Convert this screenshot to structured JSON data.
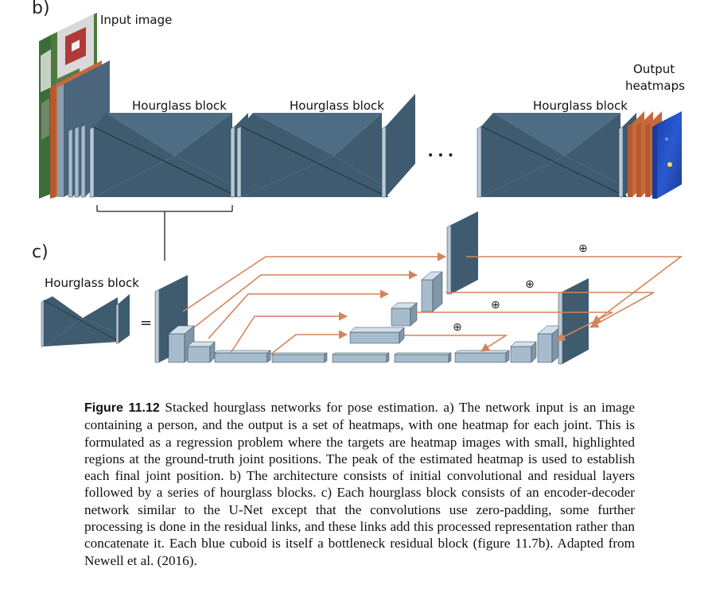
{
  "figure": {
    "panel_b_label": "b)",
    "panel_c_label": "c)",
    "input_image_label": "Input image",
    "output_heatmaps_label_line1": "Output",
    "output_heatmaps_label_line2": "heatmaps",
    "hourglass_block_labels": [
      "Hourglass block",
      "Hourglass block",
      "Hourglass block"
    ],
    "hourglass_block_label_c": "Hourglass block",
    "ellipsis": "• • •",
    "equals_sign": "=",
    "plus_symbol": "⊕"
  },
  "caption": {
    "figure_number": "Figure 11.12",
    "text": "Stacked hourglass networks for pose estimation. a) The network input is an image containing a person, and the output is a set of heatmaps, with one heatmap for each joint. This is formulated as a regression problem where the targets are heatmap images with small, highlighted regions at the ground-truth joint positions. The peak of the estimated heatmap is used to establish each final joint position. b) The architecture consists of initial convolutional and residual layers followed by a series of hourglass blocks. c) Each hourglass block consists of an encoder-decoder network similar to the U-Net except that the convolutions use zero-padding, some further processing is done in the residual links, and these links add this processed representation rather than concatenate it. Each blue cuboid is itself a bottleneck residual block (figure 11.7b). Adapted from Newell et al. (2016)."
  },
  "colors": {
    "slab_dark": "#3f5b70",
    "slab_light": "#a9bccb",
    "cuboid_front": "#a6bccd",
    "cuboid_top": "#d2e0ea",
    "cuboid_side": "#7f97a9",
    "orange": "#c8683b",
    "arrow_orange": "#d4845a",
    "green": "#4f7a3e",
    "heatmap_blue": "#1f47b8"
  }
}
